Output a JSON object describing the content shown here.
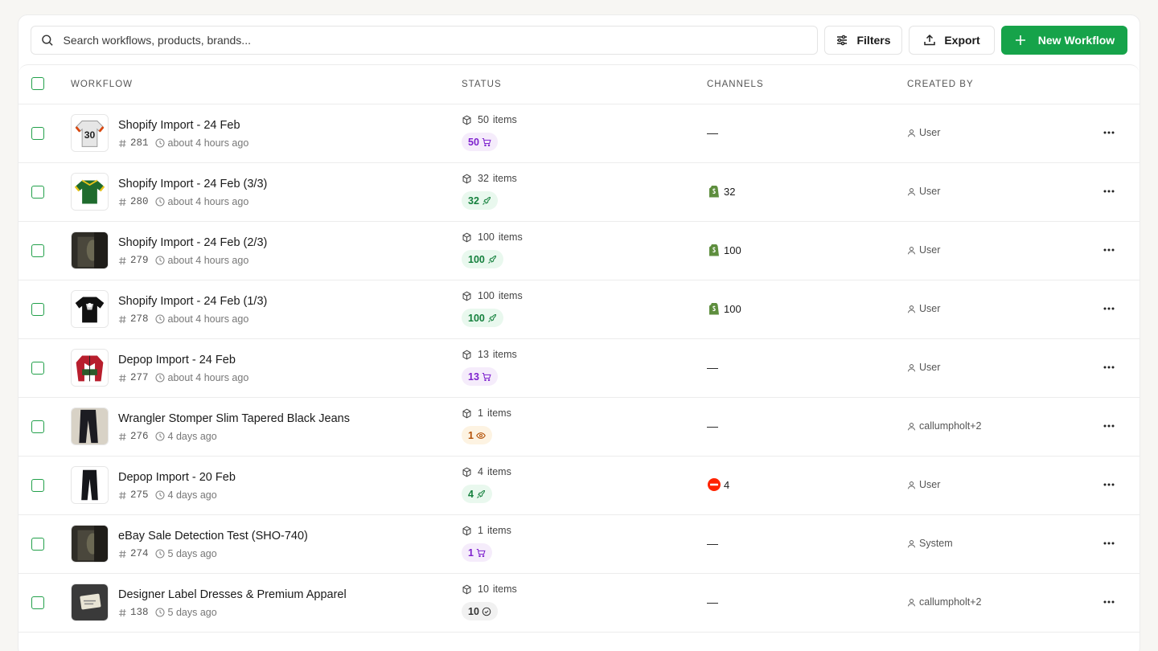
{
  "search": {
    "placeholder": "Search workflows, products, brands..."
  },
  "toolbar": {
    "filters_label": "Filters",
    "export_label": "Export",
    "new_label": "New Workflow"
  },
  "colors": {
    "accent": "#16a34a",
    "checkbox": "#22a04a",
    "purple_badge": "#7e22ce",
    "green_badge": "#15803d",
    "amber_badge": "#b45309",
    "shopify": "#5e8e3e",
    "depop": "#ff2300"
  },
  "table": {
    "headers": {
      "workflow": "WORKFLOW",
      "status": "STATUS",
      "channels": "CHANNELS",
      "created_by": "CREATED BY"
    },
    "items_label": "items",
    "rows": [
      {
        "name": "Shopify Import - 24 Feb",
        "id": "281",
        "ago": "about 4 hours ago",
        "items": "50",
        "badge": "50",
        "badge_icon": "cart-icon",
        "channel": "",
        "channel_icon": "",
        "channel_empty": "—",
        "creator": "User",
        "thumb": "jersey-white"
      },
      {
        "name": "Shopify Import - 24 Feb (3/3)",
        "id": "280",
        "ago": "about 4 hours ago",
        "items": "32",
        "badge": "32",
        "badge_icon": "rocket-icon",
        "channel": "32",
        "channel_icon": "shopify-icon",
        "channel_empty": "",
        "creator": "User",
        "thumb": "jersey-green"
      },
      {
        "name": "Shopify Import - 24 Feb (2/3)",
        "id": "279",
        "ago": "about 4 hours ago",
        "items": "100",
        "badge": "100",
        "badge_icon": "rocket-icon",
        "channel": "100",
        "channel_icon": "shopify-icon",
        "channel_empty": "",
        "creator": "User",
        "thumb": "photo-dark"
      },
      {
        "name": "Shopify Import - 24 Feb (1/3)",
        "id": "278",
        "ago": "about 4 hours ago",
        "items": "100",
        "badge": "100",
        "badge_icon": "rocket-icon",
        "channel": "100",
        "channel_icon": "shopify-icon",
        "channel_empty": "",
        "creator": "User",
        "thumb": "tshirt-black"
      },
      {
        "name": "Depop Import - 24 Feb",
        "id": "277",
        "ago": "about 4 hours ago",
        "items": "13",
        "badge": "13",
        "badge_icon": "cart-icon",
        "channel": "",
        "channel_icon": "",
        "channel_empty": "—",
        "creator": "User",
        "thumb": "jacket-red"
      },
      {
        "name": "Wrangler Stomper Slim Tapered Black Jeans",
        "id": "276",
        "ago": "4 days ago",
        "items": "1",
        "badge": "1",
        "badge_icon": "eye-icon",
        "channel": "",
        "channel_icon": "",
        "channel_empty": "—",
        "creator": "callumpholt+2",
        "thumb": "jeans-photo"
      },
      {
        "name": "Depop Import - 20 Feb",
        "id": "275",
        "ago": "4 days ago",
        "items": "4",
        "badge": "4",
        "badge_icon": "rocket-icon",
        "channel": "4",
        "channel_icon": "depop-icon",
        "channel_empty": "",
        "creator": "User",
        "thumb": "jeans-black"
      },
      {
        "name": "eBay Sale Detection Test (SHO-740)",
        "id": "274",
        "ago": "5 days ago",
        "items": "1",
        "badge": "1",
        "badge_icon": "cart-icon",
        "channel": "",
        "channel_icon": "",
        "channel_empty": "—",
        "creator": "System",
        "thumb": "photo-dark"
      },
      {
        "name": "Designer Label Dresses & Premium Apparel",
        "id": "138",
        "ago": "5 days ago",
        "items": "10",
        "badge": "10",
        "badge_icon": "check-circle-icon",
        "channel": "",
        "channel_icon": "",
        "channel_empty": "—",
        "creator": "callumpholt+2",
        "thumb": "label-photo"
      }
    ]
  }
}
